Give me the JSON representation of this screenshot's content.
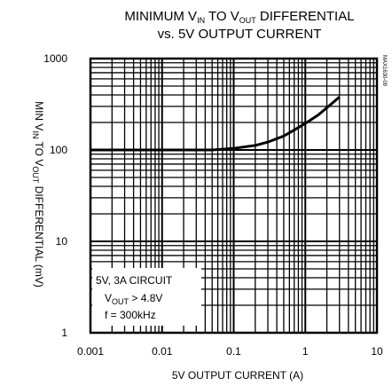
{
  "chart_data": {
    "type": "line",
    "title": {
      "line1": {
        "before": "MINIMUM V",
        "sub1": "IN",
        "mid": " TO V",
        "sub2": "OUT",
        "after": " DIFFERENTIAL"
      },
      "line2": "vs. 5V OUTPUT CURRENT"
    },
    "xlabel": "5V OUTPUT CURRENT (A)",
    "ylabel": {
      "before": "MIN V",
      "sub1": "IN",
      "mid": " TO V",
      "sub2": "OUT",
      "after": " DIFFERENTIAL (mV)"
    },
    "x_scale": "log",
    "y_scale": "log",
    "xlim": [
      0.001,
      10
    ],
    "ylim": [
      1,
      1000
    ],
    "x_ticks": [
      0.001,
      0.01,
      0.1,
      1,
      10
    ],
    "x_tick_labels": [
      "0.001",
      "0.01",
      "0.1",
      "1",
      "10"
    ],
    "y_ticks": [
      1,
      10,
      100,
      1000
    ],
    "y_tick_labels": [
      "1",
      "10",
      "100",
      "1000"
    ],
    "grid": true,
    "annotation": {
      "line1": "5V, 3A CIRCUIT",
      "line2": {
        "before": "V",
        "sub": "OUT",
        "after": " > 4.8V"
      },
      "line3": "f = 300kHz"
    },
    "graph_id": "MAX1630-09",
    "series": [
      {
        "color": "#000000",
        "x": [
          0.001,
          0.01,
          0.05,
          0.1,
          0.2,
          0.3,
          0.5,
          0.7,
          1,
          1.5,
          2,
          3
        ],
        "y": [
          100,
          100,
          100,
          104,
          112,
          122,
          142,
          165,
          195,
          240,
          290,
          380
        ]
      }
    ]
  }
}
